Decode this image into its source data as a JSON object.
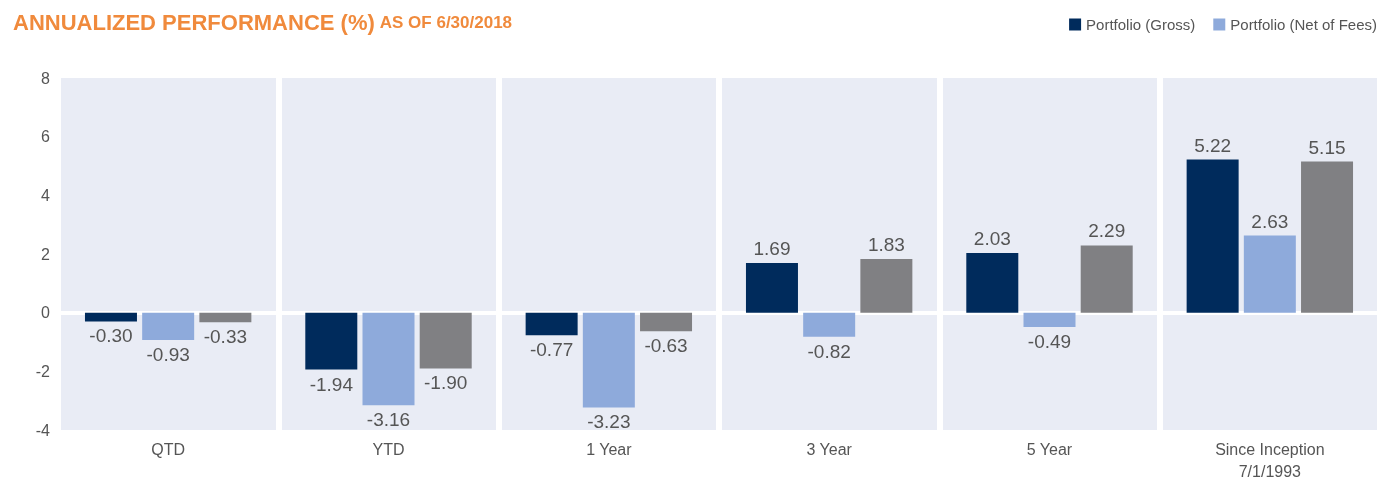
{
  "chart_data": {
    "type": "bar",
    "title": "ANNUALIZED PERFORMANCE (%)",
    "subtitle": "AS OF 6/30/2018",
    "categories": [
      "QTD",
      "YTD",
      "1 Year",
      "3 Year",
      "5 Year",
      "Since Inception\n7/1/1993"
    ],
    "series": [
      {
        "name": "Portfolio (Gross)",
        "color": "#002b5c",
        "values": [
          -0.3,
          -1.94,
          -0.77,
          1.69,
          2.03,
          5.22
        ],
        "value_labels": [
          "-0.30",
          "-1.94",
          "-0.77",
          "1.69",
          "2.03",
          "5.22"
        ]
      },
      {
        "name": "Portfolio (Net of Fees)",
        "color": "#8eaadb",
        "values": [
          -0.93,
          -3.16,
          -3.23,
          -0.82,
          -0.49,
          2.63
        ],
        "value_labels": [
          "-0.93",
          "-3.16",
          "-3.23",
          "-0.82",
          "-0.49",
          "2.63"
        ]
      },
      {
        "color": "#808083",
        "values": [
          -0.33,
          -1.9,
          -0.63,
          1.83,
          2.29,
          5.15
        ],
        "value_labels": [
          "-0.33",
          "-1.90",
          "-0.63",
          "1.83",
          "2.29",
          "5.15"
        ]
      }
    ],
    "ylim": [
      -4,
      8
    ],
    "yticks": [
      -4,
      -2,
      0,
      2,
      4,
      6,
      8
    ],
    "grid": "x",
    "legend": "top right"
  }
}
